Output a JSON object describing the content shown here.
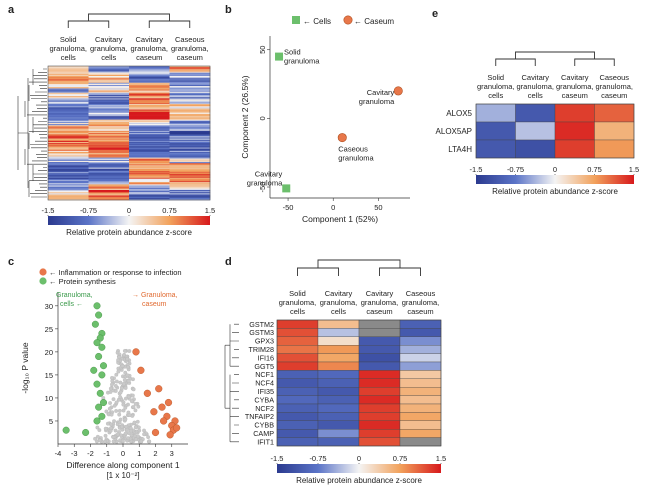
{
  "panel_labels": {
    "a": "a",
    "b": "b",
    "c": "c",
    "d": "d",
    "e": "e"
  },
  "scale": {
    "min": -1.5,
    "max": 1.5,
    "ticks": [
      "-1.5",
      "-0.75",
      "0",
      "0.75",
      "1.5"
    ],
    "label": "Relative protein abundance z-score",
    "colors": [
      "#2b3a8f",
      "#5b74c7",
      "#f4f4f4",
      "#f2a25c",
      "#d7191c"
    ]
  },
  "chart_data": [
    {
      "id": "a",
      "type": "heatmap",
      "columns": [
        "Solid granuloma, cells",
        "Cavitary granuloma, cells",
        "Cavitary granuloma, caseum",
        "Caseous granuloma, caseum"
      ],
      "column_label_lines": [
        [
          "Solid",
          "granuloma,",
          "cells"
        ],
        [
          "Cavitary",
          "granuloma,",
          "cells"
        ],
        [
          "Cavitary",
          "granuloma,",
          "caseum"
        ],
        [
          "Caseous",
          "granuloma,",
          "caseum"
        ]
      ],
      "colorbar_label": "Relative protein abundance z-score",
      "row_profile": [
        [
          0.3,
          -0.6,
          -0.4,
          0.8
        ],
        [
          0.7,
          0.2,
          -0.6,
          -0.3
        ],
        [
          1.1,
          0.6,
          -0.9,
          -0.8
        ],
        [
          0.2,
          -0.3,
          0.6,
          -0.5
        ],
        [
          -0.6,
          0.3,
          0.8,
          -0.5
        ],
        [
          0.5,
          -0.8,
          0.9,
          -0.6
        ],
        [
          -0.4,
          -0.7,
          1.2,
          0.1
        ],
        [
          -0.7,
          -0.6,
          0.9,
          0.3
        ],
        [
          -0.9,
          -0.5,
          1.3,
          0.2
        ],
        [
          -0.8,
          -0.9,
          1.4,
          0.3
        ],
        [
          -0.3,
          0.6,
          0.3,
          -0.5
        ],
        [
          0.6,
          0.5,
          -0.6,
          -0.4
        ],
        [
          0.9,
          0.8,
          -0.8,
          -1.0
        ],
        [
          1.0,
          0.7,
          -0.9,
          -0.7
        ],
        [
          0.8,
          1.0,
          -0.7,
          -1.0
        ],
        [
          0.6,
          1.2,
          -1.0,
          -0.9
        ],
        [
          0.4,
          0.9,
          -0.8,
          -0.5
        ],
        [
          -0.3,
          -0.2,
          0.7,
          -0.2
        ],
        [
          -0.8,
          -0.7,
          0.8,
          0.6
        ],
        [
          -0.9,
          -1.0,
          1.2,
          0.8
        ],
        [
          -1.0,
          -1.0,
          0.9,
          1.1
        ],
        [
          -0.7,
          -0.6,
          0.5,
          0.9
        ],
        [
          -0.5,
          0.8,
          -0.4,
          0.2
        ],
        [
          0.3,
          1.1,
          -0.6,
          -0.7
        ],
        [
          0.9,
          0.9,
          -0.9,
          -0.8
        ]
      ]
    },
    {
      "id": "b",
      "type": "scatter",
      "xlabel": "Component 1 (52%)",
      "ylabel": "Component 2 (26.5%)",
      "xlim": [
        -70,
        85
      ],
      "ylim": [
        -58,
        60
      ],
      "xticks": [
        -50,
        0,
        50
      ],
      "yticks": [
        -50,
        0,
        50
      ],
      "legend": [
        {
          "marker": "square",
          "color": "#6cbf6c",
          "label": "← Cells"
        },
        {
          "marker": "circle",
          "color": "#e8774a",
          "label": "← Caseum"
        }
      ],
      "points": [
        {
          "x": -60,
          "y": 45,
          "marker": "square",
          "color": "#6cbf6c",
          "label_lines": [
            "Solid",
            "granuloma"
          ]
        },
        {
          "x": 72,
          "y": 20,
          "marker": "circle",
          "color": "#e8774a",
          "label_lines": [
            "Cavitary",
            "granuloma"
          ]
        },
        {
          "x": 10,
          "y": -14,
          "marker": "circle",
          "color": "#e8774a",
          "label_lines": [
            "Caseous",
            "granuloma"
          ]
        },
        {
          "x": -52,
          "y": -51,
          "marker": "square",
          "color": "#6cbf6c",
          "label_lines": [
            "Cavitary",
            "granuloma"
          ]
        }
      ]
    },
    {
      "id": "c",
      "type": "scatter",
      "xlabel_lines": [
        "Difference along component 1",
        "[1 x 10⁻²]"
      ],
      "ylabel": "-log₁₀ P value",
      "xlim": [
        -4,
        4
      ],
      "ylim": [
        0,
        33
      ],
      "xticks": [
        -4,
        -3,
        -2,
        -1,
        0,
        1,
        2,
        3
      ],
      "yticks": [
        5,
        10,
        15,
        20,
        25,
        30
      ],
      "legend": [
        {
          "color": "#e8774a",
          "label": "← Inflammation or response to infection"
        },
        {
          "color": "#6cbf6c",
          "label": "← Protein synthesis"
        }
      ],
      "annotations": [
        {
          "text_lines": [
            "Granuloma,",
            "cells ←"
          ],
          "color": "#3a9a4a",
          "side": "left"
        },
        {
          "text_lines": [
            "→ Granuloma,",
            "caseum"
          ],
          "color": "#e06a30",
          "side": "right"
        }
      ],
      "green_points": [
        [
          -1.6,
          30
        ],
        [
          -1.5,
          28
        ],
        [
          -1.7,
          26
        ],
        [
          -1.3,
          24
        ],
        [
          -1.4,
          23
        ],
        [
          -1.6,
          22
        ],
        [
          -1.3,
          21
        ],
        [
          -1.5,
          19
        ],
        [
          -1.2,
          17
        ],
        [
          -1.8,
          16
        ],
        [
          -1.3,
          15
        ],
        [
          -1.6,
          13
        ],
        [
          -1.4,
          11
        ],
        [
          -1.2,
          9
        ],
        [
          -1.5,
          8
        ],
        [
          -1.3,
          6
        ],
        [
          -1.6,
          5
        ],
        [
          -3.5,
          3
        ],
        [
          -2.3,
          2.5
        ]
      ],
      "orange_points": [
        [
          0.8,
          20
        ],
        [
          1.1,
          16
        ],
        [
          2.2,
          12
        ],
        [
          1.5,
          11
        ],
        [
          2.8,
          9
        ],
        [
          2.4,
          8
        ],
        [
          1.9,
          7
        ],
        [
          2.7,
          6
        ],
        [
          3.2,
          5
        ],
        [
          2.5,
          5
        ],
        [
          3.0,
          4
        ],
        [
          3.1,
          3
        ],
        [
          2.9,
          2
        ],
        [
          2.0,
          2.5
        ],
        [
          3.3,
          3.5
        ]
      ],
      "gray_cloud_note": "dense gray cloud of proteins centered near x = 0"
    },
    {
      "id": "d",
      "type": "heatmap",
      "columns": [
        "Solid granuloma, cells",
        "Cavitary granuloma, cells",
        "Cavitary granuloma, caseum",
        "Caseous granuloma, caseum"
      ],
      "column_label_lines": [
        [
          "Solid",
          "granuloma,",
          "cells"
        ],
        [
          "Cavitary",
          "granuloma,",
          "cells"
        ],
        [
          "Cavitary",
          "granuloma,",
          "caseum"
        ],
        [
          "Caseous",
          "granuloma,",
          "caseum"
        ]
      ],
      "rows": [
        "GSTM2",
        "GSTM3",
        "GPX3",
        "TRIM28",
        "IFI16",
        "GGT5",
        "NCF1",
        "NCF4",
        "IFI35",
        "CYBA",
        "NCF2",
        "TNFAIP2",
        "CYBB",
        "CAMP",
        "IFIT1"
      ],
      "values": [
        [
          1.3,
          0.5,
          null,
          -1.0
        ],
        [
          1.2,
          -0.3,
          null,
          -1.1
        ],
        [
          1.1,
          0.2,
          -1.1,
          -0.6
        ],
        [
          1.0,
          0.8,
          -1.1,
          -0.4
        ],
        [
          1.2,
          0.7,
          -1.2,
          -0.2
        ],
        [
          1.3,
          0.9,
          -1.1,
          -0.5
        ],
        [
          -1.0,
          -0.9,
          1.4,
          0.4
        ],
        [
          -1.1,
          -1.0,
          1.4,
          0.5
        ],
        [
          -1.0,
          -1.1,
          1.3,
          0.6
        ],
        [
          -0.9,
          -1.0,
          1.4,
          0.5
        ],
        [
          -1.0,
          -0.9,
          1.3,
          0.6
        ],
        [
          -1.1,
          -1.0,
          1.3,
          0.7
        ],
        [
          -1.0,
          -1.1,
          1.4,
          0.5
        ],
        [
          -1.1,
          -0.6,
          1.3,
          0.7
        ],
        [
          -1.0,
          -1.0,
          1.2,
          null
        ]
      ],
      "colorbar_label": "Relative protein abundance z-score"
    },
    {
      "id": "e",
      "type": "heatmap",
      "columns": [
        "Solid granuloma, cells",
        "Cavitary granuloma, cells",
        "Cavitary granuloma, caseum",
        "Caseous granuloma, caseum"
      ],
      "column_label_lines": [
        [
          "Solid",
          "granuloma,",
          "cells"
        ],
        [
          "Cavitary",
          "granuloma,",
          "cells"
        ],
        [
          "Cavitary",
          "granuloma,",
          "caseum"
        ],
        [
          "Caseous",
          "granuloma,",
          "caseum"
        ]
      ],
      "rows": [
        "ALOX5",
        "ALOX5AP",
        "LTA4H"
      ],
      "values": [
        [
          -0.4,
          -1.1,
          1.3,
          1.1
        ],
        [
          -1.1,
          -0.3,
          1.4,
          0.6
        ],
        [
          -1.1,
          -1.2,
          1.3,
          0.8
        ]
      ],
      "colorbar_label": "Relative protein abundance z-score"
    }
  ]
}
